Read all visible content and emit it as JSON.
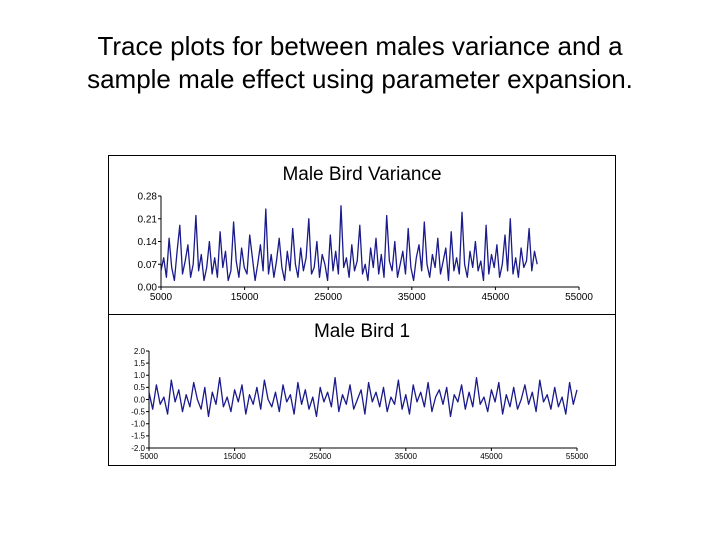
{
  "slide": {
    "title_line1": "Trace plots for between males variance and a",
    "title_line2": "sample male effect using parameter expansion."
  },
  "chart_data": [
    {
      "type": "line",
      "title": "Male Bird Variance",
      "xlabel": "",
      "ylabel": "",
      "xlim": [
        5000,
        55000
      ],
      "ylim": [
        0.0,
        0.28
      ],
      "x_ticks": [
        5000,
        15000,
        25000,
        35000,
        45000,
        55000
      ],
      "x_tick_labels": [
        "5000",
        "15000",
        "25000",
        "35000",
        "45000",
        "55000"
      ],
      "y_ticks": [
        0.0,
        0.07,
        0.14,
        0.21,
        0.28
      ],
      "y_tick_labels": [
        "0.00",
        "0.07",
        "0.14",
        "0.21",
        "0.28"
      ],
      "grid": false,
      "color": "#1a1a8c",
      "series": [
        {
          "x_start": 5000,
          "x_end": 50000,
          "values": [
            0.05,
            0.09,
            0.03,
            0.15,
            0.06,
            0.02,
            0.11,
            0.19,
            0.04,
            0.08,
            0.13,
            0.03,
            0.07,
            0.22,
            0.05,
            0.1,
            0.02,
            0.06,
            0.14,
            0.04,
            0.09,
            0.03,
            0.17,
            0.06,
            0.11,
            0.02,
            0.05,
            0.2,
            0.08,
            0.03,
            0.12,
            0.06,
            0.04,
            0.16,
            0.09,
            0.02,
            0.07,
            0.13,
            0.05,
            0.24,
            0.04,
            0.1,
            0.03,
            0.08,
            0.15,
            0.06,
            0.02,
            0.11,
            0.05,
            0.18,
            0.07,
            0.03,
            0.12,
            0.05,
            0.09,
            0.21,
            0.04,
            0.06,
            0.14,
            0.03,
            0.1,
            0.07,
            0.02,
            0.16,
            0.05,
            0.11,
            0.04,
            0.25,
            0.06,
            0.09,
            0.03,
            0.13,
            0.05,
            0.08,
            0.19,
            0.04,
            0.07,
            0.02,
            0.12,
            0.06,
            0.15,
            0.04,
            0.1,
            0.03,
            0.22,
            0.08,
            0.05,
            0.14,
            0.03,
            0.07,
            0.11,
            0.04,
            0.18,
            0.06,
            0.02,
            0.09,
            0.13,
            0.05,
            0.2,
            0.07,
            0.03,
            0.1,
            0.06,
            0.15,
            0.04,
            0.08,
            0.12,
            0.02,
            0.17,
            0.05,
            0.09,
            0.04,
            0.23,
            0.07,
            0.03,
            0.11,
            0.06,
            0.14,
            0.05,
            0.08,
            0.02,
            0.19,
            0.04,
            0.1,
            0.06,
            0.13,
            0.03,
            0.07,
            0.16,
            0.05,
            0.21,
            0.04,
            0.09,
            0.03,
            0.12,
            0.06,
            0.08,
            0.18,
            0.05,
            0.11,
            0.07
          ]
        }
      ]
    },
    {
      "type": "line",
      "title": "Male Bird 1",
      "xlabel": "",
      "ylabel": "",
      "xlim": [
        5000,
        55000
      ],
      "ylim": [
        -2.0,
        2.0
      ],
      "x_ticks": [
        5000,
        15000,
        25000,
        35000,
        45000,
        55000
      ],
      "x_tick_labels": [
        "5000",
        "15000",
        "25000",
        "35000",
        "45000",
        "55000"
      ],
      "y_ticks": [
        -2.0,
        -1.5,
        -1.0,
        -0.5,
        0.0,
        0.5,
        1.0,
        1.5,
        2.0
      ],
      "y_tick_labels": [
        "-2.0",
        "-1.5",
        "-1.0",
        "-0.5",
        "0.0",
        "0.5",
        "1.0",
        "1.5",
        "2.0"
      ],
      "grid": false,
      "color": "#1a1a8c",
      "series": [
        {
          "x_start": 5000,
          "x_end": 55000,
          "values": [
            0.3,
            -0.4,
            0.6,
            -0.2,
            0.1,
            -0.6,
            0.8,
            -0.1,
            0.4,
            -0.5,
            0.2,
            -0.3,
            0.7,
            0.0,
            -0.4,
            0.5,
            -0.7,
            0.3,
            -0.2,
            0.9,
            -0.3,
            0.1,
            -0.5,
            0.4,
            -0.1,
            0.6,
            -0.6,
            0.2,
            -0.2,
            0.5,
            -0.4,
            0.8,
            0.0,
            -0.3,
            0.3,
            -0.5,
            0.6,
            -0.1,
            0.2,
            -0.6,
            0.7,
            -0.2,
            0.4,
            -0.4,
            0.1,
            -0.7,
            0.5,
            -0.1,
            0.3,
            -0.3,
            0.9,
            -0.5,
            0.2,
            -0.2,
            0.6,
            -0.4,
            0.0,
            0.4,
            -0.6,
            0.7,
            -0.1,
            0.3,
            -0.3,
            0.5,
            -0.5,
            0.1,
            -0.2,
            0.8,
            -0.4,
            0.2,
            -0.6,
            0.6,
            -0.1,
            0.3,
            -0.3,
            0.7,
            -0.5,
            0.1,
            0.4,
            -0.2,
            0.5,
            -0.7,
            0.2,
            -0.1,
            0.6,
            -0.4,
            0.3,
            -0.3,
            0.9,
            -0.2,
            0.1,
            -0.5,
            0.4,
            -0.1,
            0.7,
            -0.6,
            0.2,
            -0.3,
            0.5,
            -0.4,
            0.0,
            0.6,
            -0.2,
            0.3,
            -0.5,
            0.8,
            -0.1,
            0.2,
            -0.4,
            0.5,
            -0.3,
            0.1,
            -0.6,
            0.7,
            -0.2,
            0.4
          ]
        }
      ]
    }
  ]
}
